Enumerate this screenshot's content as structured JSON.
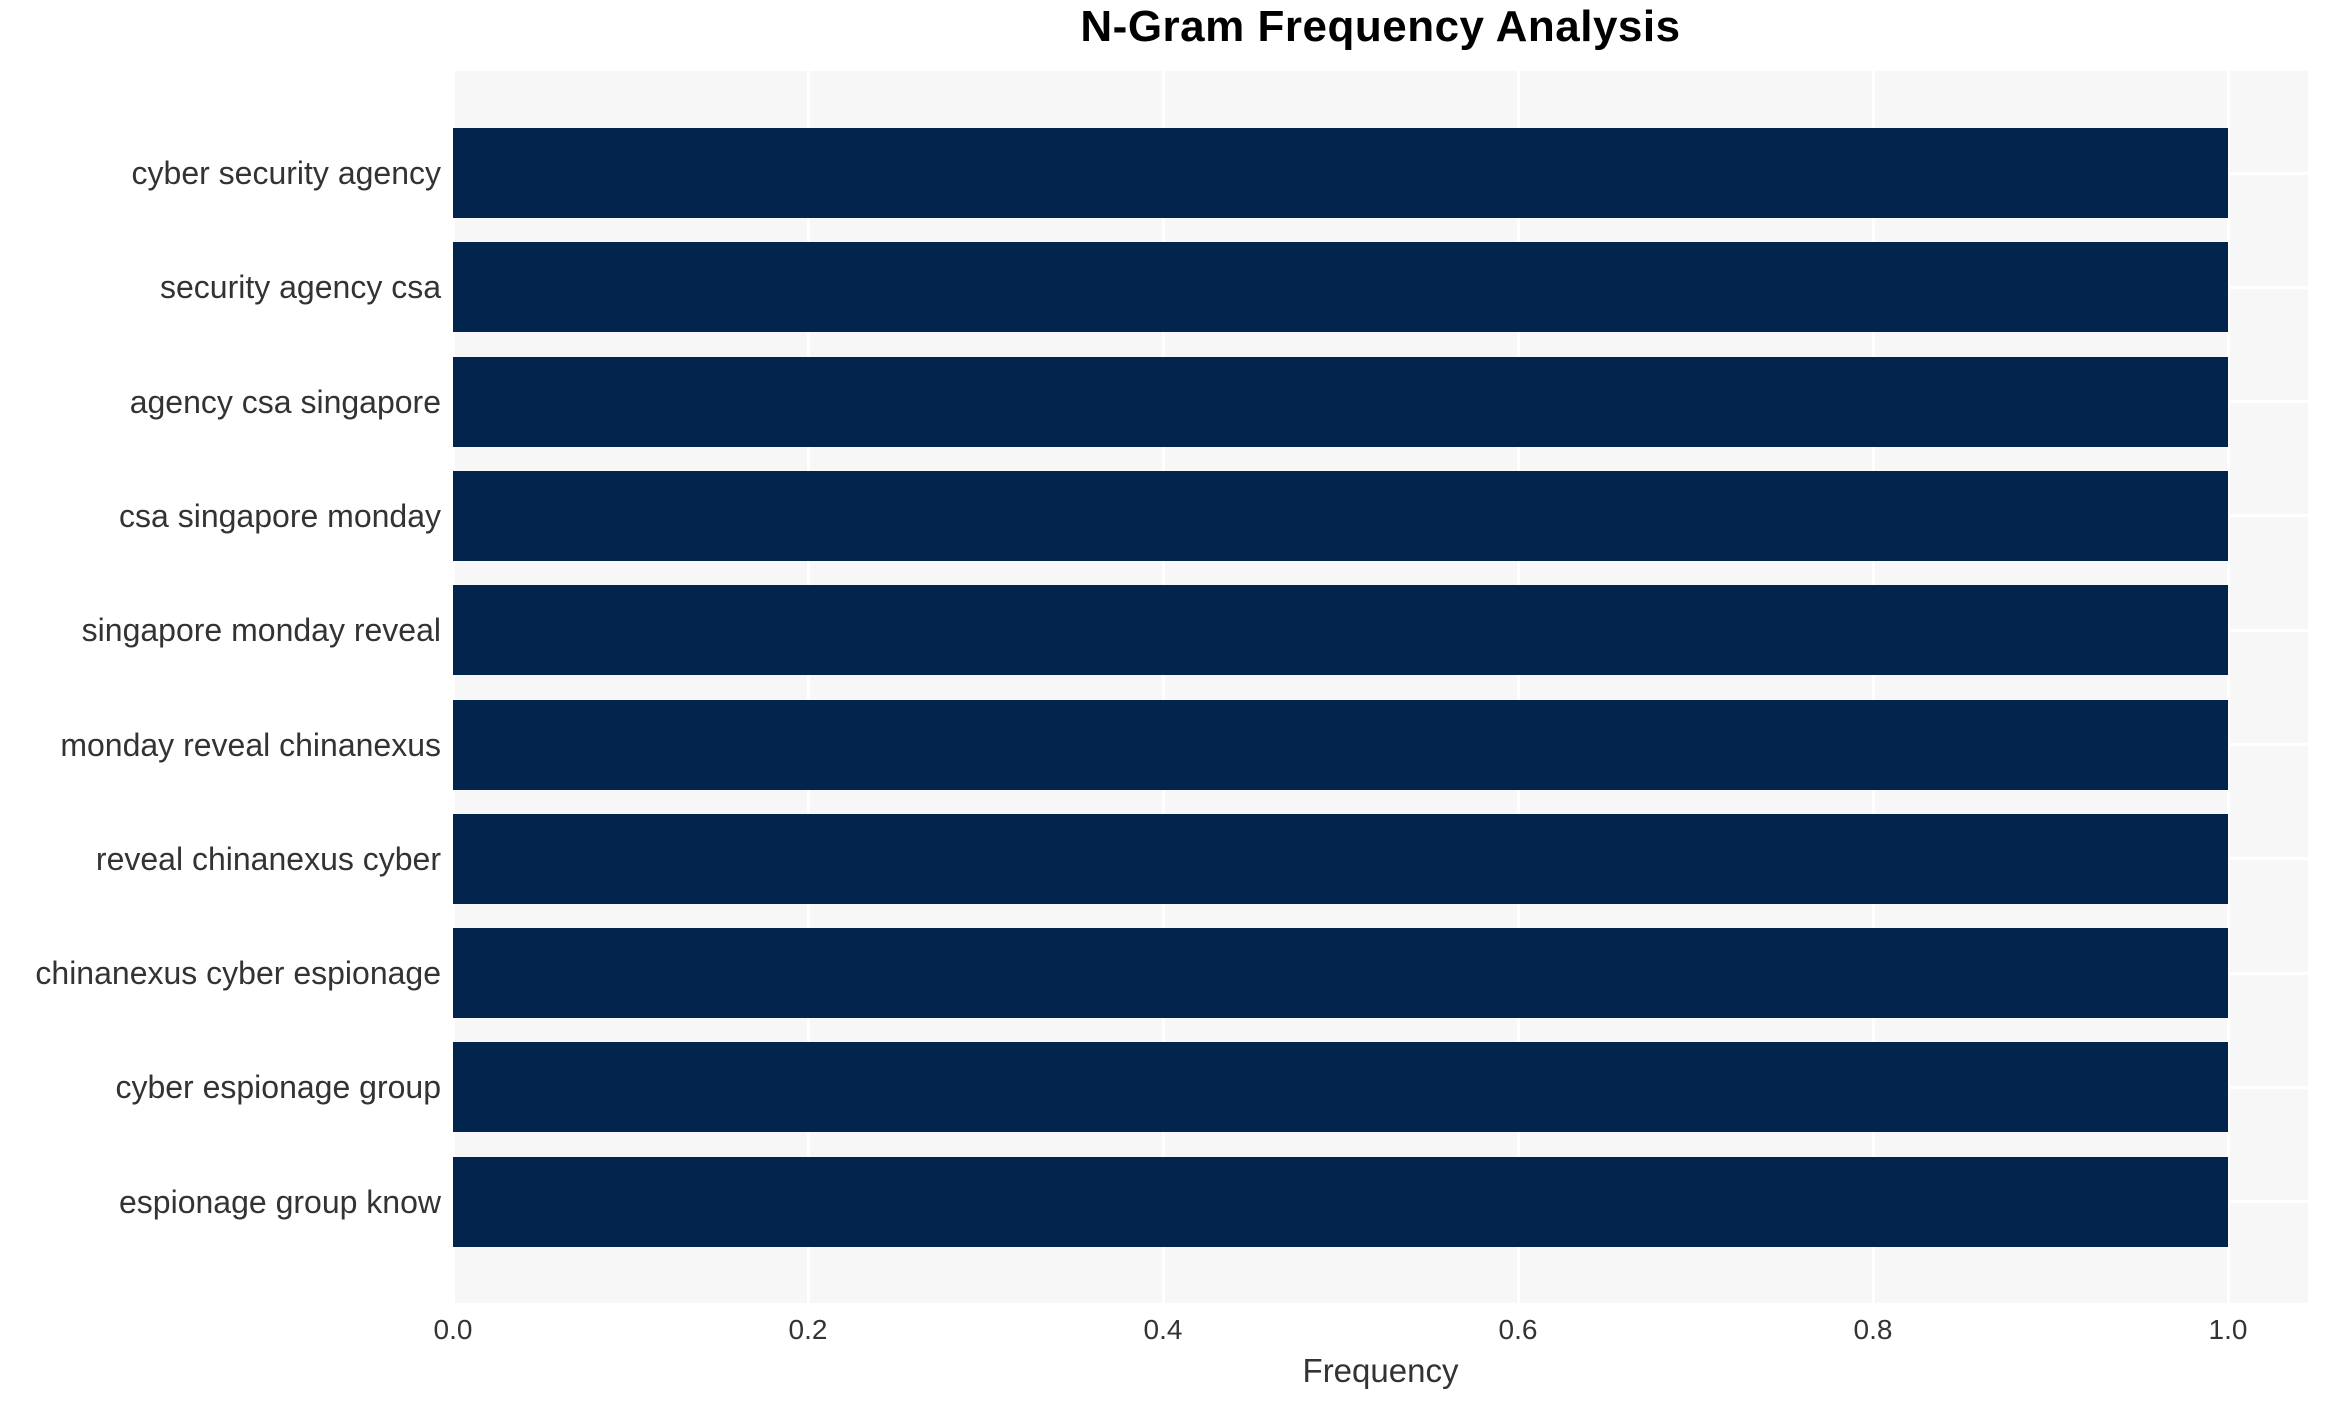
{
  "title": "N-Gram Frequency Analysis",
  "xaxis": {
    "label": "Frequency",
    "ticks": [
      "0.0",
      "0.2",
      "0.4",
      "0.6",
      "0.8",
      "1.0"
    ]
  },
  "chart_data": {
    "type": "bar",
    "orientation": "horizontal",
    "title": "N-Gram Frequency Analysis",
    "xlabel": "Frequency",
    "ylabel": "",
    "categories": [
      "cyber security agency",
      "security agency csa",
      "agency csa singapore",
      "csa singapore monday",
      "singapore monday reveal",
      "monday reveal chinanexus",
      "reveal chinanexus cyber",
      "chinanexus cyber espionage",
      "cyber espionage group",
      "espionage group know"
    ],
    "values": [
      1.0,
      1.0,
      1.0,
      1.0,
      1.0,
      1.0,
      1.0,
      1.0,
      1.0,
      1.0
    ],
    "xlim": [
      0.0,
      1.045
    ],
    "grid": true,
    "legend": false
  },
  "colors": {
    "bar": "#02244d",
    "plot_bg": "#f7f7f7",
    "grid": "#ffffff",
    "text": "#333333",
    "title_text": "#000000",
    "page_bg": "#ffffff"
  }
}
